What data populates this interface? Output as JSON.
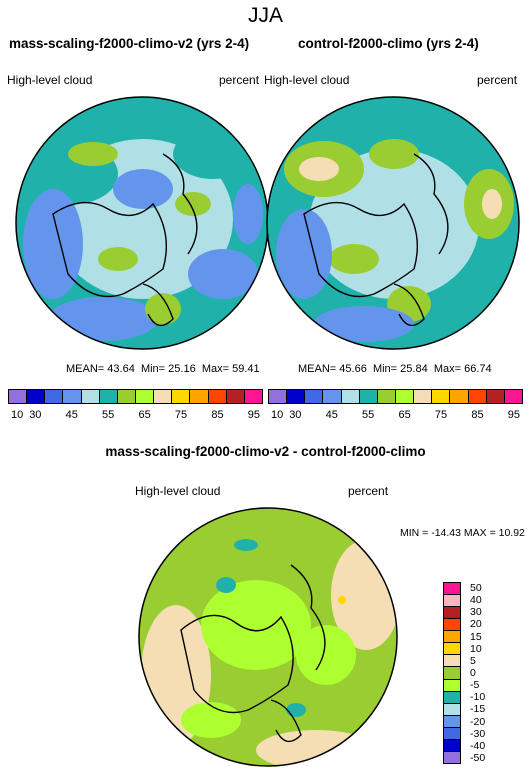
{
  "title": "JJA",
  "left_panel": {
    "title": "mass-scaling-f2000-climo-v2 (yrs 2-4)",
    "variable": "High-level cloud",
    "units": "percent",
    "mean_label": "MEAN=",
    "mean": "43.64",
    "min_label": "Min=",
    "min": "25.16",
    "max_label": "Max=",
    "max": "59.41"
  },
  "right_panel": {
    "title": "control-f2000-climo (yrs 2-4)",
    "variable": "High-level cloud",
    "units": "percent",
    "mean_label": "MEAN=",
    "mean": "45.66",
    "min_label": "Min=",
    "min": "25.84",
    "max_label": "Max=",
    "max": "66.74"
  },
  "diff_panel": {
    "title": "mass-scaling-f2000-climo-v2 - control-f2000-climo",
    "variable": "High-level cloud",
    "units": "percent",
    "minmax_text": "MIN = -14.43 MAX =  10.92"
  },
  "colorbar_abs": {
    "labels": [
      "10",
      "30",
      "45",
      "55",
      "65",
      "75",
      "85",
      "95"
    ],
    "colors": [
      "#9370db",
      "#0000cd",
      "#4169e1",
      "#6495ed",
      "#b0e0e6",
      "#20b2aa",
      "#9acd32",
      "#adff2f",
      "#f5deb3",
      "#ffd700",
      "#ffa500",
      "#ff4500",
      "#b22222",
      "#ff1493"
    ]
  },
  "colorbar_diff": {
    "labels": [
      "50",
      "40",
      "30",
      "20",
      "15",
      "10",
      "5",
      "0",
      "-5",
      "-10",
      "-15",
      "-20",
      "-30",
      "-40",
      "-50"
    ],
    "colors": [
      "#ff1493",
      "#ffb6c1",
      "#b22222",
      "#ff4500",
      "#ffa500",
      "#ffd700",
      "#f5deb3",
      "#9acd32",
      "#adff2f",
      "#20b2aa",
      "#b0e0e6",
      "#6495ed",
      "#4169e1",
      "#0000cd",
      "#9370db"
    ]
  }
}
